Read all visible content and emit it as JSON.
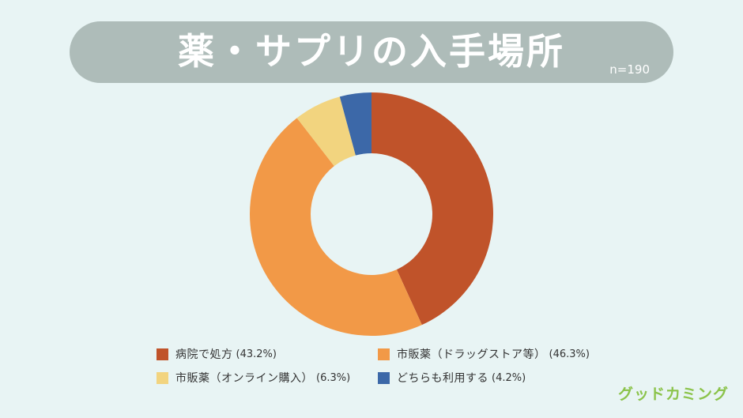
{
  "title": "薬・サプリの入手場所",
  "sample_size": "n=190",
  "brand_logo": "グッドカミング",
  "colors": {
    "background": "#e8f4f4",
    "title_bar": "#aebcb9",
    "brand": "#8bc34a"
  },
  "chart_data": {
    "type": "pie",
    "variant": "donut",
    "title": "薬・サプリの入手場所",
    "note": "n=190",
    "legend_position": "bottom",
    "slices": [
      {
        "label": "病院で処方",
        "pct_text": "(43.2%)",
        "value": 43.2,
        "color": "#c0532a"
      },
      {
        "label": "市販薬（ドラッグストア等）",
        "pct_text": "(46.3%)",
        "value": 46.3,
        "color": "#f29947"
      },
      {
        "label": "市販薬（オンライン購入）",
        "pct_text": "(6.3%)",
        "value": 6.3,
        "color": "#f2d47f"
      },
      {
        "label": "どちらも利用する",
        "pct_text": "(4.2%)",
        "value": 4.2,
        "color": "#3c68a8"
      }
    ]
  }
}
